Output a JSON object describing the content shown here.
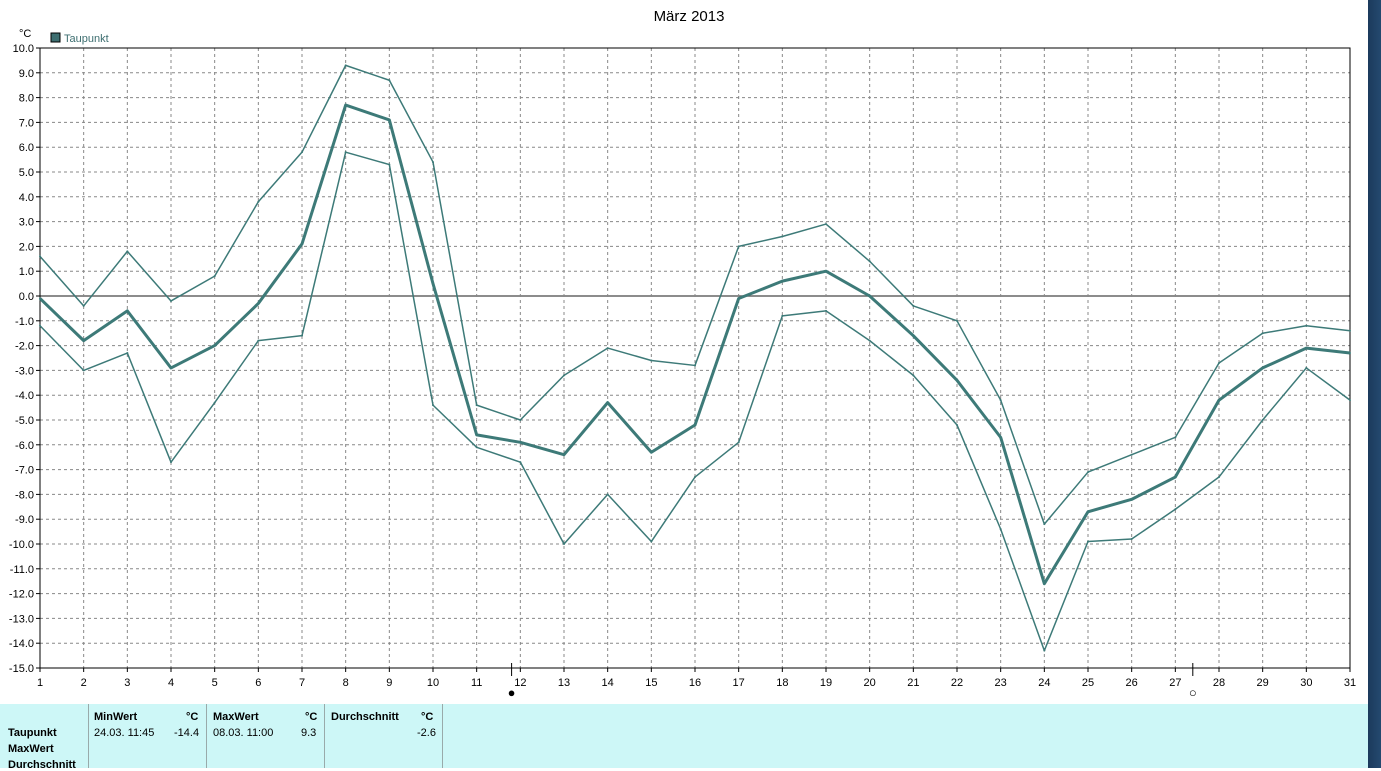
{
  "title": "März 2013",
  "unit_label": "°C",
  "legend": {
    "label": "Taupunkt",
    "color": "#3d6e70"
  },
  "colors": {
    "series": "#3d7a78",
    "grid": "#888888",
    "axis": "#000000",
    "stats_bg": "#cdf7f7"
  },
  "chart_data": {
    "type": "line",
    "title": "März 2013",
    "ylabel": "°C",
    "xlabel": "",
    "x": [
      1,
      2,
      3,
      4,
      5,
      6,
      7,
      8,
      9,
      10,
      11,
      12,
      13,
      14,
      15,
      16,
      17,
      18,
      19,
      20,
      21,
      22,
      23,
      24,
      25,
      26,
      27,
      28,
      29,
      30,
      31
    ],
    "xlim": [
      1,
      31
    ],
    "ylim": [
      -15.0,
      10.0
    ],
    "y_ticks": [
      "10.0",
      "9.0",
      "8.0",
      "7.0",
      "6.0",
      "5.0",
      "4.0",
      "3.0",
      "2.0",
      "1.0",
      "0.0",
      "-1.0",
      "-2.0",
      "-3.0",
      "-4.0",
      "-5.0",
      "-6.0",
      "-7.0",
      "-8.0",
      "-9.0",
      "-10.0",
      "-11.0",
      "-12.0",
      "-13.0",
      "-14.0",
      "-15.0"
    ],
    "grid": true,
    "legend_position": "top-left",
    "series": [
      {
        "name": "Taupunkt",
        "role": "avg",
        "values": [
          -0.1,
          -1.8,
          -0.6,
          -2.9,
          -2.0,
          -0.3,
          2.1,
          7.7,
          7.1,
          0.5,
          -5.6,
          -5.9,
          -6.4,
          -4.3,
          -6.3,
          -5.2,
          -0.1,
          0.6,
          1.0,
          0.0,
          -1.6,
          -3.4,
          -5.7,
          -11.6,
          -8.7,
          -8.2,
          -7.3,
          -4.2,
          -2.9,
          -2.1,
          -2.3
        ]
      },
      {
        "role": "max",
        "values": [
          1.6,
          -0.4,
          1.8,
          -0.2,
          0.8,
          3.8,
          5.8,
          9.3,
          8.7,
          5.4,
          -4.4,
          -5.0,
          -3.2,
          -2.1,
          -2.6,
          -2.8,
          2.0,
          2.4,
          2.9,
          1.4,
          -0.4,
          -1.0,
          -4.2,
          -9.2,
          -7.1,
          -6.4,
          -5.7,
          -2.7,
          -1.5,
          -1.2,
          -1.4
        ]
      },
      {
        "role": "min",
        "values": [
          -1.2,
          -3.0,
          -2.3,
          -6.7,
          -4.3,
          -1.8,
          -1.6,
          5.8,
          5.3,
          -4.4,
          -6.1,
          -6.7,
          -10.0,
          -8.0,
          -9.9,
          -7.3,
          -5.9,
          -0.8,
          -0.6,
          -1.8,
          -3.2,
          -5.2,
          -9.4,
          -14.3,
          -9.9,
          -9.8,
          -8.6,
          -7.3,
          -5.0,
          -2.9,
          -4.2
        ]
      }
    ]
  },
  "moon_markers": [
    {
      "day": 11.8,
      "symbol": "●"
    },
    {
      "day": 27.4,
      "symbol": "○"
    }
  ],
  "stats": {
    "row_labels": [
      "Taupunkt",
      "MaxWert",
      "Durchschnitt"
    ],
    "min": {
      "header": "MinWert",
      "unit": "°C",
      "when": "24.03.  11:45",
      "value": "-14.4"
    },
    "max": {
      "header": "MaxWert",
      "unit": "°C",
      "when": "08.03.  11:00",
      "value": "9.3"
    },
    "avg": {
      "header": "Durchschnitt",
      "unit": "°C",
      "value": "-2.6"
    }
  }
}
